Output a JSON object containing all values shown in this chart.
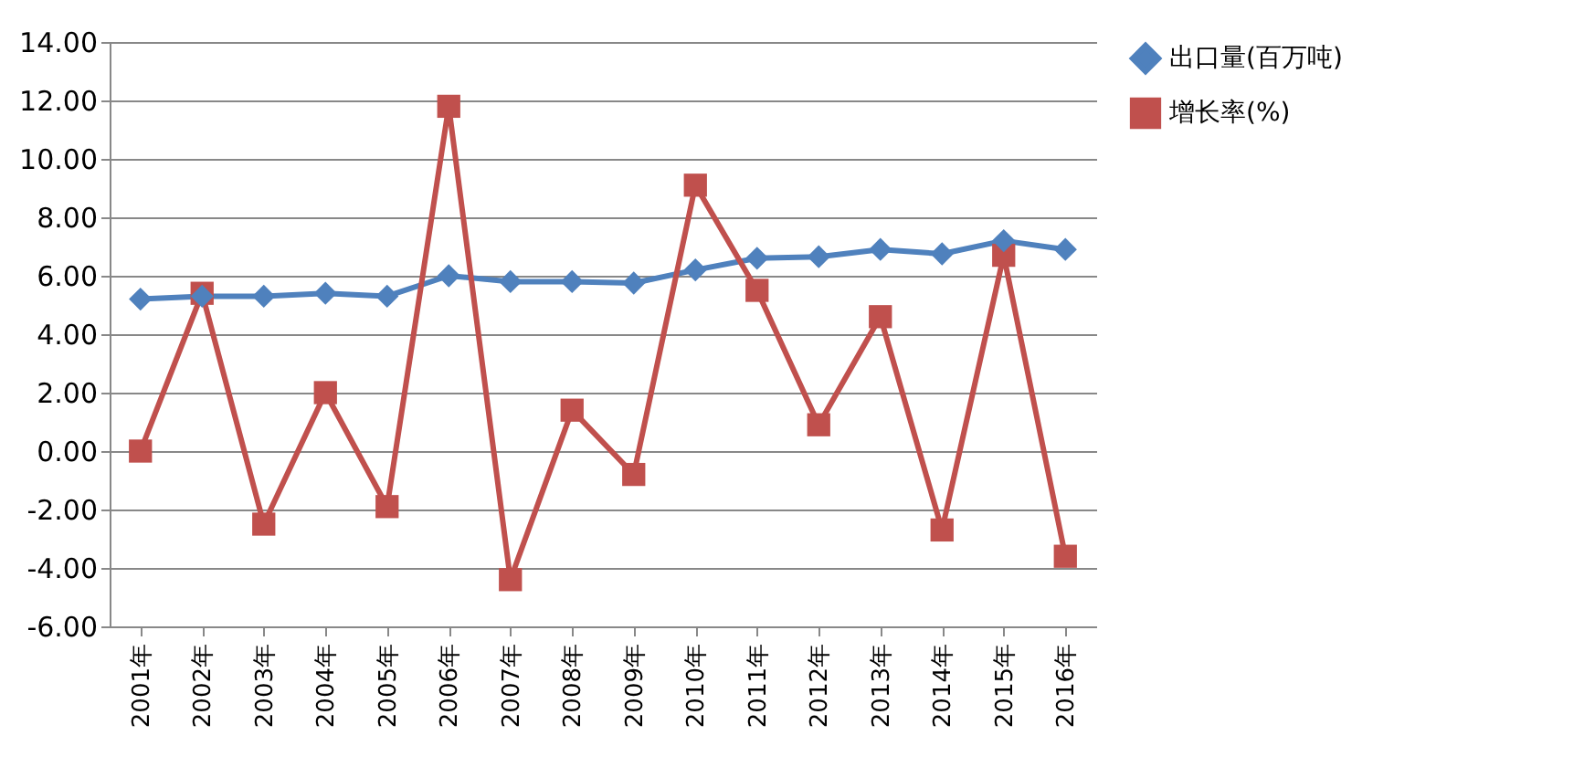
{
  "chart_data": {
    "type": "line",
    "categories": [
      "2001年",
      "2002年",
      "2003年",
      "2004年",
      "2005年",
      "2006年",
      "2007年",
      "2008年",
      "2009年",
      "2010年",
      "2011年",
      "2012年",
      "2013年",
      "2014年",
      "2015年",
      "2016年"
    ],
    "series": [
      {
        "name": "出口量(百万吨)",
        "color": "#4f81bd",
        "marker": "diamond",
        "values": [
          5.2,
          5.3,
          5.3,
          5.4,
          5.3,
          6.0,
          5.8,
          5.8,
          5.75,
          6.2,
          6.6,
          6.65,
          6.9,
          6.75,
          7.2,
          6.9
        ]
      },
      {
        "name": "增长率(%)",
        "color": "#c0504d",
        "marker": "square",
        "values": [
          0.0,
          5.4,
          -2.5,
          2.0,
          -1.9,
          11.8,
          -4.4,
          1.4,
          -0.8,
          9.1,
          5.5,
          0.9,
          4.6,
          -2.7,
          6.7,
          -3.6
        ]
      }
    ],
    "ylim": [
      -6,
      14
    ],
    "yticks": [
      {
        "value": -6,
        "label": "-6.00"
      },
      {
        "value": -4,
        "label": "-4.00"
      },
      {
        "value": -2,
        "label": "-2.00"
      },
      {
        "value": 0,
        "label": "0.00"
      },
      {
        "value": 2,
        "label": "2.00"
      },
      {
        "value": 4,
        "label": "4.00"
      },
      {
        "value": 6,
        "label": "6.00"
      },
      {
        "value": 8,
        "label": "8.00"
      },
      {
        "value": 10,
        "label": "10.00"
      },
      {
        "value": 12,
        "label": "12.00"
      },
      {
        "value": 14,
        "label": "14.00"
      }
    ],
    "grid": "y",
    "legend": "right"
  }
}
